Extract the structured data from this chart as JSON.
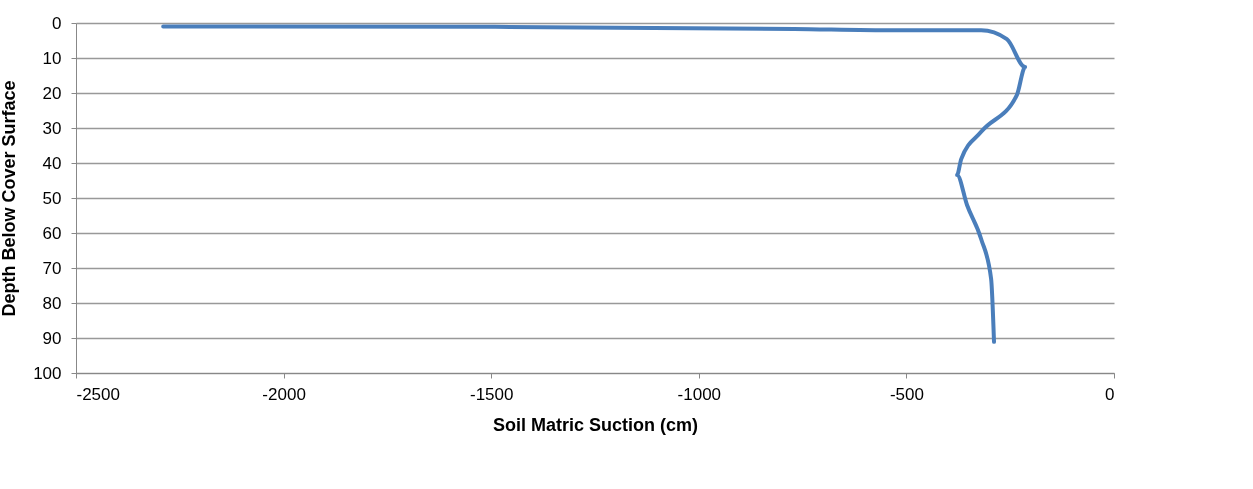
{
  "chart_data": {
    "type": "line",
    "xlabel": "Soil Matric Suction (cm)",
    "ylabel": "Depth Below Cover Surface",
    "xlim": [
      -2500,
      0
    ],
    "xticks": [
      -2500,
      -2000,
      -1500,
      -1000,
      -500,
      0
    ],
    "ylim": [
      100,
      0
    ],
    "yticks": [
      0,
      10,
      20,
      30,
      40,
      50,
      60,
      70,
      80,
      90,
      100
    ],
    "grid": "y",
    "marker": "none",
    "line_style": "solid",
    "series": [
      {
        "color": "#4a7ebb",
        "x": [
          -2290,
          -1490,
          -770,
          -530,
          -320,
          -258,
          -214,
          -234,
          -320,
          -368,
          -378,
          -354,
          -320,
          -296,
          -289
        ],
        "values": [
          1,
          1.1,
          1.7,
          2.1,
          2.1,
          4.6,
          12.6,
          20.6,
          31.1,
          38.9,
          43.4,
          52,
          61.7,
          73.1,
          91.1
        ]
      }
    ]
  }
}
